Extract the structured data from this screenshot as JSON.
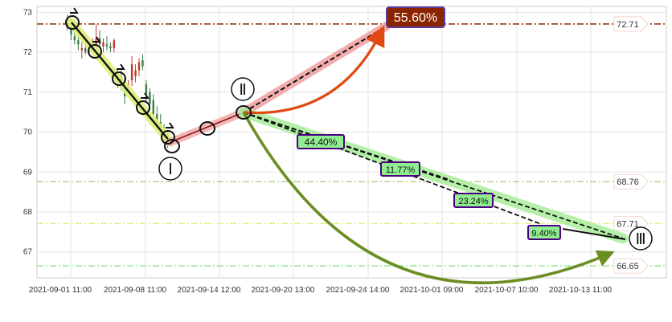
{
  "chart_data": {
    "type": "candlestick",
    "x_tick_labels": [
      "2021-09-01 11:00",
      "2021-09-08 11:00",
      "2021-09-14 12:00",
      "2021-09-20 13:00",
      "2021-09-24 14:00",
      "2021-10-01 09:00",
      "2021-10-07 10:00",
      "2021-10-13 11:00"
    ],
    "y_ticks": [
      67,
      68,
      69,
      70,
      71,
      72,
      73
    ],
    "ylim": [
      66.35,
      73.15
    ],
    "grid": true,
    "candles": [
      {
        "o": 72.75,
        "h": 72.95,
        "l": 72.55,
        "c": 72.6
      },
      {
        "o": 72.65,
        "h": 72.85,
        "l": 72.3,
        "c": 72.45
      },
      {
        "o": 72.4,
        "h": 72.7,
        "l": 72.2,
        "c": 72.3
      },
      {
        "o": 72.3,
        "h": 72.55,
        "l": 72.05,
        "c": 72.2
      },
      {
        "o": 72.05,
        "h": 72.25,
        "l": 71.85,
        "c": 72.1
      },
      {
        "o": 72.1,
        "h": 72.4,
        "l": 71.95,
        "c": 72.0
      },
      {
        "o": 72.0,
        "h": 72.2,
        "l": 71.95,
        "c": 72.15
      },
      {
        "o": 72.2,
        "h": 72.35,
        "l": 72.0,
        "c": 72.25
      },
      {
        "o": 72.2,
        "h": 72.7,
        "l": 72.05,
        "c": 72.35
      },
      {
        "o": 72.35,
        "h": 72.55,
        "l": 72.1,
        "c": 72.2
      },
      {
        "o": 72.15,
        "h": 72.35,
        "l": 72.0,
        "c": 72.25
      },
      {
        "o": 72.2,
        "h": 72.4,
        "l": 72.05,
        "c": 72.15
      },
      {
        "o": 72.15,
        "h": 72.25,
        "l": 72.0,
        "c": 72.1
      },
      {
        "o": 72.1,
        "h": 72.35,
        "l": 72.0,
        "c": 72.3
      },
      {
        "o": 71.5,
        "h": 71.6,
        "l": 71.1,
        "c": 71.25
      },
      {
        "o": 71.4,
        "h": 71.55,
        "l": 71.05,
        "c": 71.15
      },
      {
        "o": 71.2,
        "h": 71.4,
        "l": 70.7,
        "c": 70.9
      },
      {
        "o": 71.1,
        "h": 71.3,
        "l": 70.95,
        "c": 71.2
      },
      {
        "o": 71.3,
        "h": 71.9,
        "l": 71.15,
        "c": 71.7
      },
      {
        "o": 71.4,
        "h": 71.7,
        "l": 71.25,
        "c": 71.55
      },
      {
        "o": 71.55,
        "h": 71.85,
        "l": 71.4,
        "c": 71.75
      },
      {
        "o": 71.8,
        "h": 71.95,
        "l": 71.55,
        "c": 71.65
      },
      {
        "o": 71.2,
        "h": 71.3,
        "l": 70.75,
        "c": 70.95
      },
      {
        "o": 71.0,
        "h": 71.1,
        "l": 70.55,
        "c": 70.7
      },
      {
        "o": 70.8,
        "h": 70.95,
        "l": 70.25,
        "c": 70.45
      },
      {
        "o": 70.45,
        "h": 70.65,
        "l": 70.05,
        "c": 70.2
      },
      {
        "o": 70.25,
        "h": 70.45,
        "l": 69.9,
        "c": 70.0
      },
      {
        "o": 70.0,
        "h": 70.2,
        "l": 69.7,
        "c": 69.85
      },
      {
        "o": 69.85,
        "h": 70.05,
        "l": 69.6,
        "c": 69.7
      }
    ],
    "reference_lines": [
      {
        "value": 72.71,
        "label": "72.71",
        "color": "#8b2500",
        "style": "dash-dot"
      },
      {
        "value": 68.76,
        "label": "68.76",
        "color": "#b5cc85",
        "style": "dash-dot"
      },
      {
        "value": 67.71,
        "label": "67.71",
        "color": "#dfef80",
        "style": "dash-dot"
      },
      {
        "value": 66.65,
        "label": "66.65",
        "color": "#7fe07f",
        "style": "dash-dot"
      }
    ],
    "wave_labels": [
      "Ⅰ",
      "Ⅱ",
      "Ⅲ"
    ],
    "target_label": "55.60%",
    "percent_labels": [
      "44.40%",
      "11.77%",
      "23.24%",
      "9.40%"
    ],
    "colors": {
      "up_candle": "#c0392b",
      "down_candle": "#3a7d44",
      "target_box": "#8b2500",
      "target_arrow": "#e04a12",
      "down_arrow": "#6b8e23",
      "percent_box": "#90ee90",
      "percent_border": "#4b0082"
    }
  }
}
